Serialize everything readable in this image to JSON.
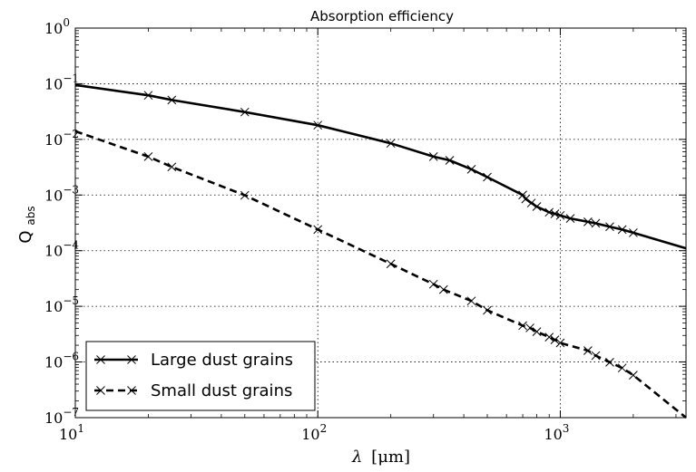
{
  "chart_data": {
    "type": "line",
    "title": "Absorption efficiency",
    "xlabel_symbol": "λ",
    "xlabel_unit": "[μm]",
    "ylabel_main": "Q",
    "ylabel_sub": "abs",
    "xscale": "log",
    "yscale": "log",
    "xlim": [
      10,
      3300
    ],
    "ylim": [
      1e-07,
      1
    ],
    "grid": true,
    "legend_position": "bottom-left",
    "x_ticks": [
      {
        "value": 10,
        "base": "10",
        "exp": "1"
      },
      {
        "value": 100,
        "base": "10",
        "exp": "2"
      },
      {
        "value": 1000,
        "base": "10",
        "exp": "3"
      }
    ],
    "y_ticks": [
      {
        "value": 1,
        "base": "10",
        "exp": "0"
      },
      {
        "value": 0.1,
        "base": "10",
        "exp": "−1"
      },
      {
        "value": 0.01,
        "base": "10",
        "exp": "−2"
      },
      {
        "value": 0.001,
        "base": "10",
        "exp": "−3"
      },
      {
        "value": 0.0001,
        "base": "10",
        "exp": "−4"
      },
      {
        "value": 1e-05,
        "base": "10",
        "exp": "−5"
      },
      {
        "value": 1e-06,
        "base": "10",
        "exp": "−6"
      },
      {
        "value": 1e-07,
        "base": "10",
        "exp": "−7"
      }
    ],
    "series": [
      {
        "name": "Large dust grains",
        "style": "solid",
        "color": "#000000",
        "x": [
          10,
          20,
          25,
          50,
          100,
          200,
          300,
          350,
          430,
          500,
          700,
          720,
          760,
          800,
          900,
          950,
          1000,
          1100,
          1300,
          1400,
          1600,
          1800,
          2000,
          3300
        ],
        "y": [
          0.095,
          0.062,
          0.051,
          0.031,
          0.018,
          0.0085,
          0.0049,
          0.0042,
          0.0029,
          0.0021,
          0.001,
          0.00085,
          0.00072,
          0.00062,
          0.00049,
          0.00046,
          0.00043,
          0.00038,
          0.00033,
          0.00031,
          0.00027,
          0.00024,
          0.00021,
          0.00011
        ]
      },
      {
        "name": "Small dust grains",
        "style": "dashed",
        "color": "#000000",
        "x": [
          10,
          20,
          25,
          50,
          100,
          200,
          300,
          330,
          430,
          500,
          700,
          750,
          800,
          900,
          950,
          1000,
          1300,
          1400,
          1600,
          1800,
          2000,
          3300
        ],
        "y": [
          0.014,
          0.0049,
          0.0032,
          0.00099,
          0.00024,
          5.8e-05,
          2.5e-05,
          2e-05,
          1.25e-05,
          8.5e-06,
          4.5e-06,
          4.1e-06,
          3.5e-06,
          2.8e-06,
          2.5e-06,
          2.2e-06,
          1.6e-06,
          1.3e-06,
          9.9e-07,
          7.8e-07,
          5.8e-07,
          1e-07
        ]
      }
    ]
  }
}
